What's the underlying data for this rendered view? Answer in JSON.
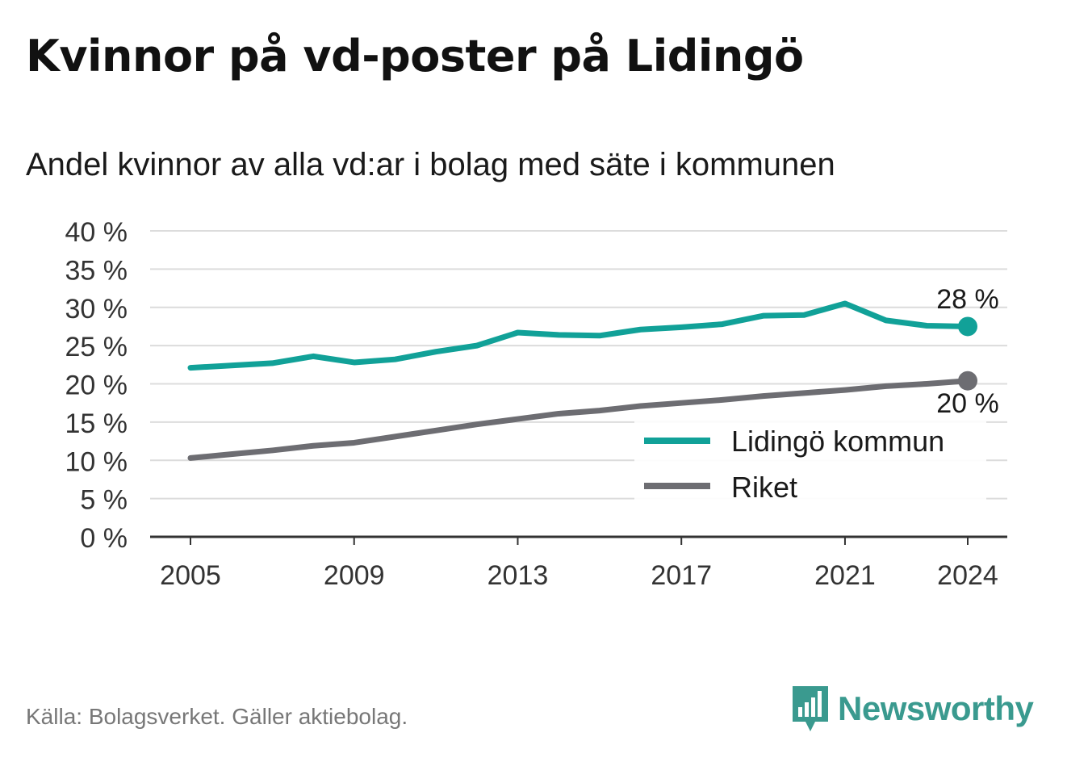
{
  "title": "Kvinnor på vd-poster på Lidingö",
  "subtitle": "Andel kvinnor av alla vd:ar i bolag med säte i kommunen",
  "source": "Källa: Bolagsverket. Gäller aktiebolag.",
  "brand": {
    "name": "Newsworthy",
    "icon": "newsworthy-logo-icon",
    "color": "#3a9a8f"
  },
  "chart_data": {
    "type": "line",
    "x": [
      2005,
      2006,
      2007,
      2008,
      2009,
      2010,
      2011,
      2012,
      2013,
      2014,
      2015,
      2016,
      2017,
      2018,
      2019,
      2020,
      2021,
      2022,
      2023,
      2024
    ],
    "x_ticks": [
      "2005",
      "2009",
      "2013",
      "2017",
      "2021",
      "2024"
    ],
    "y_ticks": [
      "0 %",
      "5 %",
      "10 %",
      "15 %",
      "20 %",
      "25 %",
      "30 %",
      "35 %",
      "40 %"
    ],
    "ylim": [
      0,
      40
    ],
    "grid": true,
    "legend_position": "bottom-right",
    "series": [
      {
        "name": "Lidingö kommun",
        "color": "#11a198",
        "values": [
          22.1,
          22.4,
          22.7,
          23.6,
          22.8,
          23.2,
          24.2,
          25.0,
          26.7,
          26.4,
          26.3,
          27.1,
          27.4,
          27.8,
          28.9,
          29.0,
          30.5,
          28.3,
          27.6,
          27.5
        ],
        "end_label": "28 %"
      },
      {
        "name": "Riket",
        "color": "#6d6d72",
        "values": [
          10.3,
          10.8,
          11.3,
          11.9,
          12.3,
          13.1,
          13.9,
          14.7,
          15.4,
          16.1,
          16.5,
          17.1,
          17.5,
          17.9,
          18.4,
          18.8,
          19.2,
          19.7,
          20.0,
          20.4
        ],
        "end_label": "20 %"
      }
    ]
  }
}
